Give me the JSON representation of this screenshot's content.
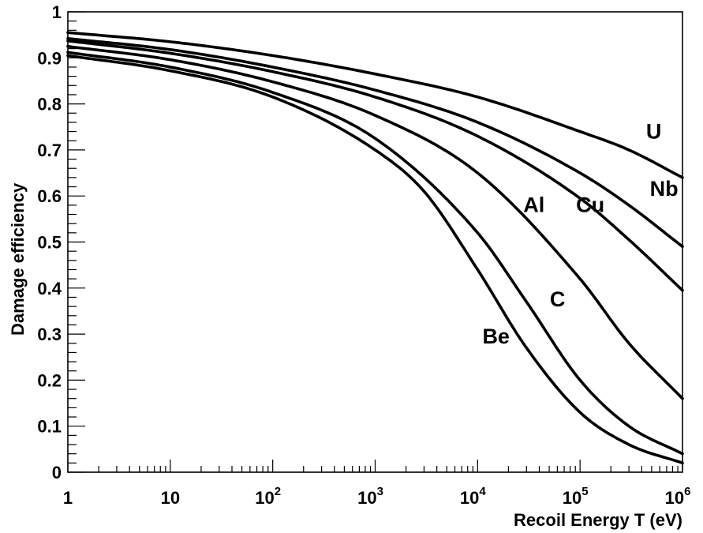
{
  "chart_data": {
    "type": "line",
    "title": "",
    "xlabel": "Recoil Energy T (eV)",
    "ylabel": "Damage efficiency",
    "x_scale": "log",
    "xlim": [
      1,
      1000000
    ],
    "ylim": [
      0,
      1
    ],
    "grid": false,
    "legend": "none; series labeled inline next to curves",
    "x_tick_labels": [
      {
        "base": "1",
        "exp": ""
      },
      {
        "base": "10",
        "exp": ""
      },
      {
        "base": "10",
        "exp": "2"
      },
      {
        "base": "10",
        "exp": "3"
      },
      {
        "base": "10",
        "exp": "4"
      },
      {
        "base": "10",
        "exp": "5"
      },
      {
        "base": "10",
        "exp": "6"
      }
    ],
    "y_tick_labels": [
      "0",
      "0.1",
      "0.2",
      "0.3",
      "0.4",
      "0.5",
      "0.6",
      "0.7",
      "0.8",
      "0.9",
      "1"
    ],
    "series": [
      {
        "name": "U",
        "x": [
          1,
          10,
          100,
          1000,
          10000,
          100000,
          300000,
          1000000
        ],
        "y": [
          0.955,
          0.935,
          0.905,
          0.865,
          0.815,
          0.74,
          0.7,
          0.64
        ]
      },
      {
        "name": "Nb",
        "x": [
          1,
          10,
          100,
          1000,
          10000,
          100000,
          300000,
          1000000
        ],
        "y": [
          0.942,
          0.918,
          0.88,
          0.83,
          0.76,
          0.65,
          0.58,
          0.49
        ]
      },
      {
        "name": "Cu",
        "x": [
          1,
          10,
          100,
          1000,
          10000,
          100000,
          300000,
          1000000
        ],
        "y": [
          0.937,
          0.91,
          0.87,
          0.815,
          0.73,
          0.595,
          0.505,
          0.395
        ]
      },
      {
        "name": "Al",
        "x": [
          1,
          10,
          100,
          1000,
          10000,
          100000,
          300000,
          1000000
        ],
        "y": [
          0.925,
          0.896,
          0.848,
          0.775,
          0.65,
          0.42,
          0.28,
          0.16
        ]
      },
      {
        "name": "C",
        "x": [
          1,
          10,
          100,
          1000,
          10000,
          30000,
          100000,
          300000,
          1000000
        ],
        "y": [
          0.912,
          0.88,
          0.825,
          0.725,
          0.52,
          0.37,
          0.2,
          0.1,
          0.04
        ]
      },
      {
        "name": "Be",
        "x": [
          1,
          10,
          100,
          1000,
          3000,
          10000,
          30000,
          100000,
          300000,
          1000000
        ],
        "y": [
          0.905,
          0.872,
          0.815,
          0.7,
          0.61,
          0.44,
          0.27,
          0.13,
          0.06,
          0.02
        ]
      }
    ]
  }
}
